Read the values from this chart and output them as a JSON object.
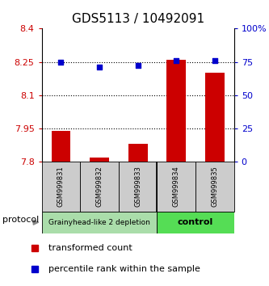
{
  "title": "GDS5113 / 10492091",
  "samples": [
    "GSM999831",
    "GSM999832",
    "GSM999833",
    "GSM999834",
    "GSM999835"
  ],
  "transformed_counts": [
    7.94,
    7.82,
    7.88,
    8.26,
    8.2
  ],
  "percentile_ranks": [
    75,
    71,
    72,
    76,
    76
  ],
  "ylim_left": [
    7.8,
    8.4
  ],
  "ylim_right": [
    0,
    100
  ],
  "yticks_left": [
    7.8,
    7.95,
    8.1,
    8.25,
    8.4
  ],
  "yticks_left_labels": [
    "7.8",
    "7.95",
    "8.1",
    "8.25",
    "8.4"
  ],
  "yticks_right": [
    0,
    25,
    50,
    75,
    100
  ],
  "yticks_right_labels": [
    "0",
    "25",
    "50",
    "75",
    "100%"
  ],
  "hlines": [
    7.95,
    8.1,
    8.25
  ],
  "bar_color": "#cc0000",
  "dot_color": "#0000cc",
  "bar_bottom": 7.8,
  "group1_label": "Grainyhead-like 2 depletion",
  "group2_label": "control",
  "group1_color": "#aaddaa",
  "group2_color": "#55dd55",
  "sample_box_color": "#cccccc",
  "protocol_label": "protocol",
  "legend_bar_label": "transformed count",
  "legend_dot_label": "percentile rank within the sample",
  "background_color": "#ffffff",
  "tick_label_color_left": "#cc0000",
  "tick_label_color_right": "#0000cc",
  "title_fontsize": 11,
  "tick_fontsize": 8,
  "sample_fontsize": 6,
  "group_fontsize": 6.5,
  "legend_fontsize": 8
}
